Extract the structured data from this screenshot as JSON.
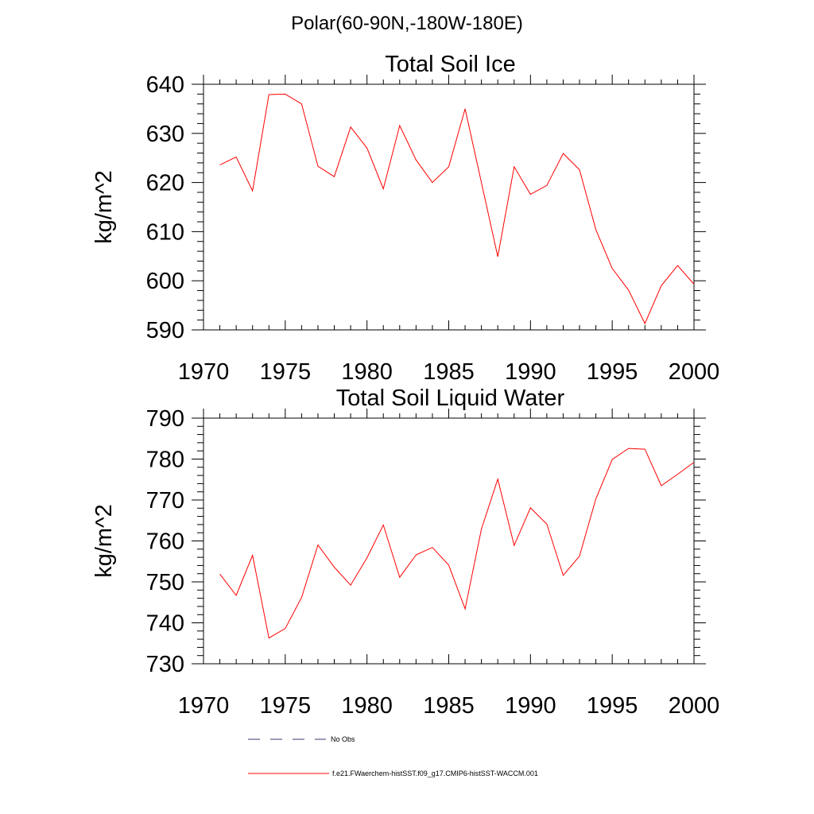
{
  "figure": {
    "suptitle": "Polar(60-90N,-180W-180E)"
  },
  "legend": {
    "entries": [
      {
        "label": "No Obs",
        "color": "#3a3a6e",
        "style": "dashed"
      },
      {
        "label": "f.e21.FWaerchem-histSST.f09_g17.CMIP6-histSST-WACCM.001",
        "color": "#ff0000",
        "style": "solid"
      }
    ]
  },
  "chart_data": [
    {
      "type": "line",
      "title": "Total Soil Ice",
      "xlabel": "",
      "ylabel": "kg/m^2",
      "xlim": [
        1970,
        2000
      ],
      "ylim": [
        590,
        640
      ],
      "xticks": [
        1970,
        1975,
        1980,
        1985,
        1990,
        1995,
        2000
      ],
      "yticks": [
        590,
        600,
        610,
        620,
        630,
        640
      ],
      "grid": false,
      "series": [
        {
          "color": "#ff0000",
          "x": [
            1971,
            1972,
            1973,
            1974,
            1975,
            1976,
            1977,
            1978,
            1979,
            1980,
            1981,
            1982,
            1983,
            1984,
            1985,
            1986,
            1987,
            1988,
            1989,
            1990,
            1991,
            1992,
            1993,
            1994,
            1995,
            1996,
            1997,
            1998,
            1999,
            2000
          ],
          "values": [
            623.6,
            625.2,
            618.3,
            637.9,
            638.0,
            636.0,
            623.3,
            621.2,
            631.3,
            627.0,
            618.7,
            631.6,
            624.6,
            620.0,
            623.2,
            635.0,
            620.0,
            604.9,
            623.2,
            617.6,
            619.4,
            625.9,
            622.6,
            610.4,
            602.5,
            598.1,
            591.3,
            599.0,
            603.1,
            599.3
          ]
        }
      ]
    },
    {
      "type": "line",
      "title": "Total Soil Liquid Water",
      "xlabel": "",
      "ylabel": "kg/m^2",
      "xlim": [
        1970,
        2000
      ],
      "ylim": [
        730,
        790
      ],
      "xticks": [
        1970,
        1975,
        1980,
        1985,
        1990,
        1995,
        2000
      ],
      "yticks": [
        730,
        740,
        750,
        760,
        770,
        780,
        790
      ],
      "grid": false,
      "series": [
        {
          "color": "#ff0000",
          "x": [
            1971,
            1972,
            1973,
            1974,
            1975,
            1976,
            1977,
            1978,
            1979,
            1980,
            1981,
            1982,
            1983,
            1984,
            1985,
            1986,
            1987,
            1988,
            1989,
            1990,
            1991,
            1992,
            1993,
            1994,
            1995,
            1996,
            1997,
            1998,
            1999,
            2000
          ],
          "values": [
            751.9,
            746.7,
            756.5,
            736.3,
            738.6,
            746.2,
            759.0,
            753.6,
            749.2,
            755.9,
            763.9,
            751.1,
            756.6,
            758.4,
            754.1,
            743.4,
            762.9,
            775.1,
            758.9,
            768.1,
            764.1,
            751.6,
            756.3,
            770.3,
            779.9,
            782.6,
            782.4,
            773.5,
            776.3,
            779.2
          ]
        }
      ]
    }
  ]
}
